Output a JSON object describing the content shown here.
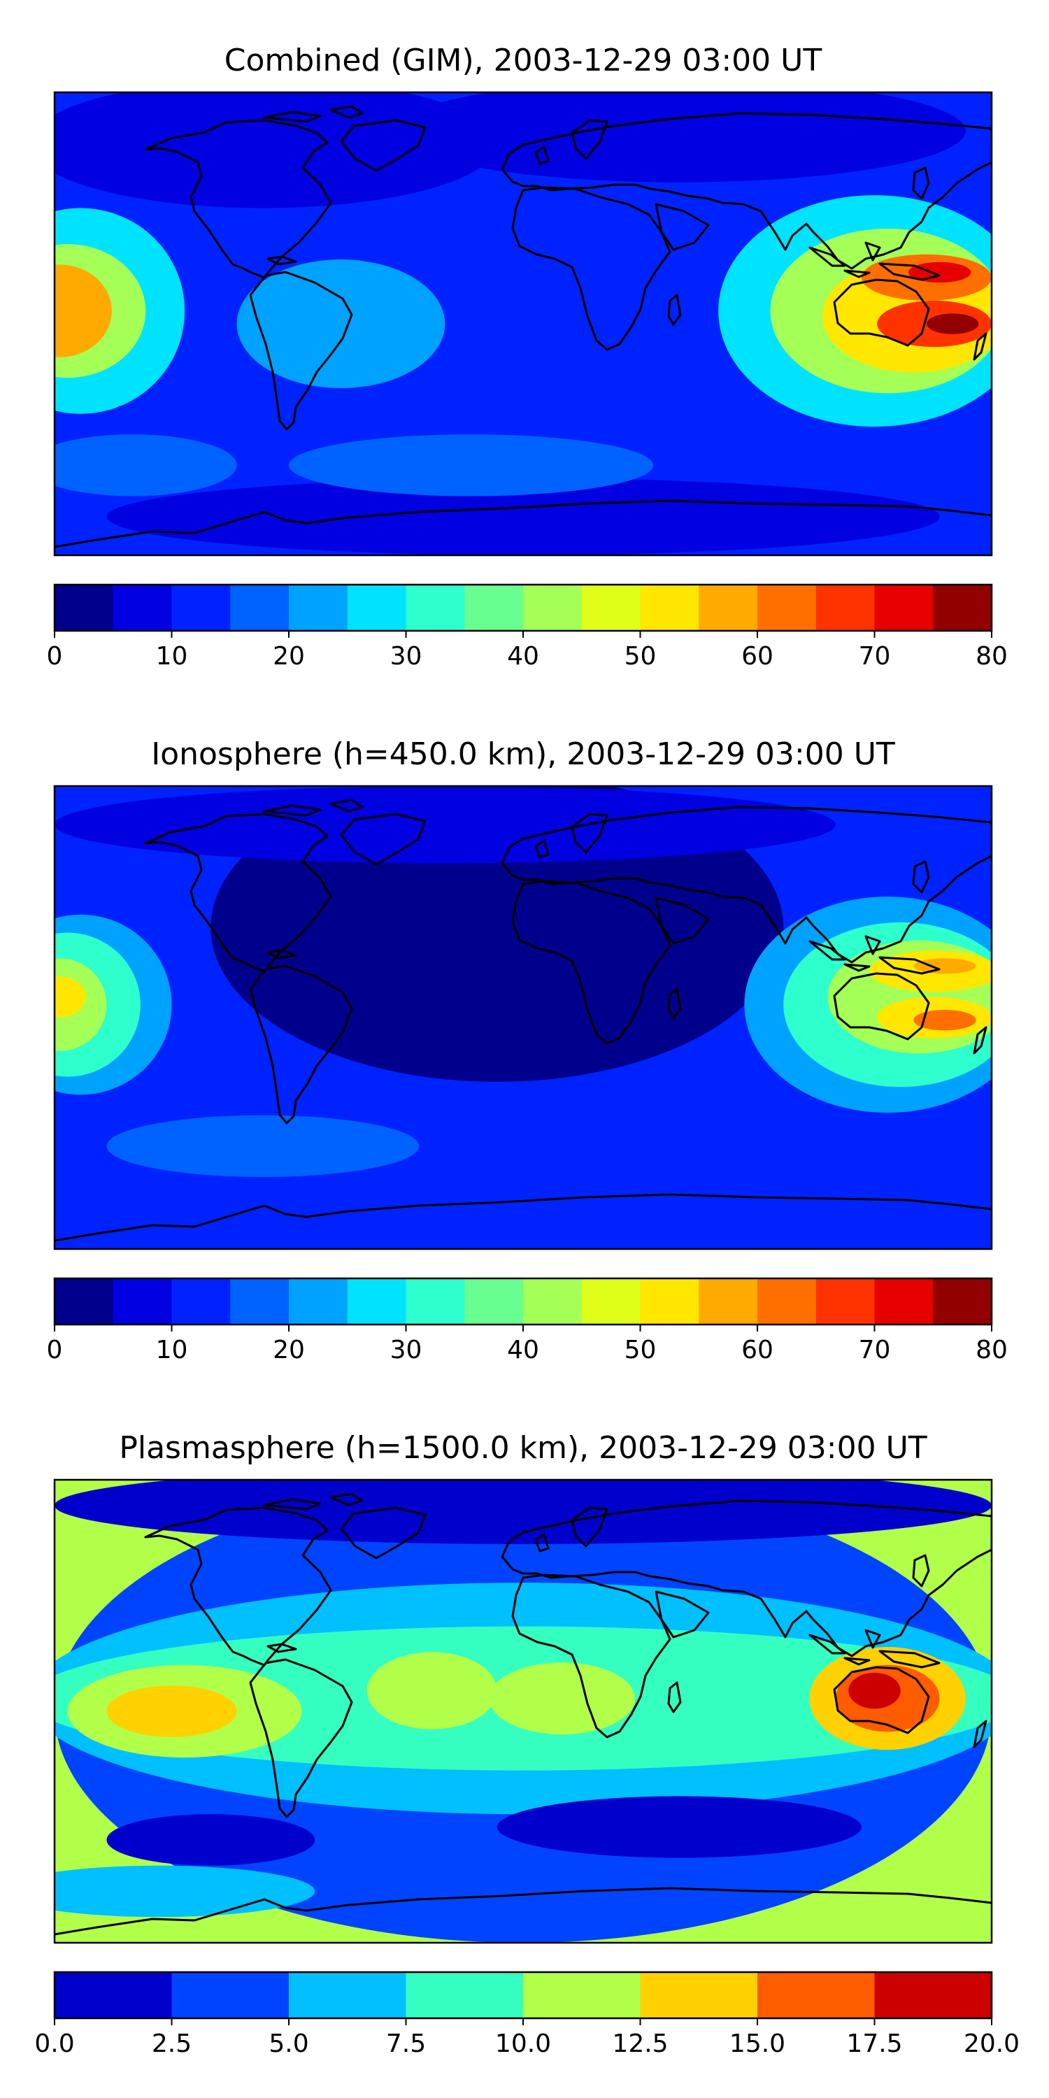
{
  "chart_data": [
    {
      "type": "heatmap",
      "title": "Combined (GIM), 2003-12-29 03:00 UT",
      "colorbar": {
        "levels": [
          0,
          5,
          10,
          15,
          20,
          25,
          30,
          35,
          40,
          45,
          50,
          55,
          60,
          65,
          70,
          75,
          80
        ],
        "ticks": [
          0,
          10,
          20,
          30,
          40,
          50,
          60,
          70,
          80
        ],
        "tick_labels": [
          "0",
          "10",
          "20",
          "30",
          "40",
          "50",
          "60",
          "70",
          "80"
        ],
        "colors": [
          "#00008d",
          "#0000e1",
          "#0022ff",
          "#0063ff",
          "#00a2ff",
          "#00e3ff",
          "#2dffcd",
          "#67ff90",
          "#a4ff56",
          "#dfff18",
          "#ffe700",
          "#ffaa00",
          "#ff6f00",
          "#ff3300",
          "#e60000",
          "#930000"
        ]
      },
      "features": [
        {
          "lon": -175,
          "lat": 5,
          "value": 62
        },
        {
          "lon": 165,
          "lat": 0,
          "value": 78
        },
        {
          "lon": 160,
          "lat": 20,
          "value": 70
        },
        {
          "lon": 125,
          "lat": 10,
          "value": 52
        },
        {
          "lon": 20,
          "lat": 55,
          "value": 5
        },
        {
          "lon": -100,
          "lat": 55,
          "value": 4
        }
      ]
    },
    {
      "type": "heatmap",
      "title": "Ionosphere  (h=450.0 km), 2003-12-29 03:00 UT",
      "colorbar": {
        "levels": [
          0,
          5,
          10,
          15,
          20,
          25,
          30,
          35,
          40,
          45,
          50,
          55,
          60,
          65,
          70,
          75,
          80
        ],
        "ticks": [
          0,
          10,
          20,
          30,
          40,
          50,
          60,
          70,
          80
        ],
        "tick_labels": [
          "0",
          "10",
          "20",
          "30",
          "40",
          "50",
          "60",
          "70",
          "80"
        ],
        "colors": [
          "#00008d",
          "#0000e1",
          "#0022ff",
          "#0063ff",
          "#00a2ff",
          "#00e3ff",
          "#2dffcd",
          "#67ff90",
          "#a4ff56",
          "#dfff18",
          "#ffe700",
          "#ffaa00",
          "#ff6f00",
          "#ff3300",
          "#e60000",
          "#930000"
        ]
      },
      "features": [
        {
          "lon": -175,
          "lat": 5,
          "value": 50
        },
        {
          "lon": 160,
          "lat": 0,
          "value": 60
        },
        {
          "lon": 160,
          "lat": 20,
          "value": 58
        },
        {
          "lon": 0,
          "lat": 30,
          "value": 3
        },
        {
          "lon": -60,
          "lat": 40,
          "value": 3
        }
      ]
    },
    {
      "type": "heatmap",
      "title": "Plasmasphere (h=1500.0 km), 2003-12-29 03:00 UT",
      "colorbar": {
        "levels": [
          0,
          2.5,
          5,
          7.5,
          10,
          12.5,
          15,
          17.5,
          20
        ],
        "ticks": [
          0,
          2.5,
          5,
          7.5,
          10,
          12.5,
          15,
          17.5,
          20
        ],
        "tick_labels": [
          "0.0",
          "2.5",
          "5.0",
          "7.5",
          "10.0",
          "12.5",
          "15.0",
          "17.5",
          "20.0"
        ],
        "colors": [
          "#0000cd",
          "#0044ff",
          "#00c0ff",
          "#35ffc0",
          "#b2ff4a",
          "#ffd100",
          "#ff5c00",
          "#cd0000"
        ]
      },
      "features": [
        {
          "lon": -135,
          "lat": 0,
          "value": 13
        },
        {
          "lon": 140,
          "lat": 5,
          "value": 17
        },
        {
          "lon": -40,
          "lat": 10,
          "value": 11
        },
        {
          "lon": 10,
          "lat": 5,
          "value": 11
        },
        {
          "lon": -120,
          "lat": -50,
          "value": 2
        },
        {
          "lon": 50,
          "lat": -50,
          "value": 2
        }
      ]
    }
  ]
}
